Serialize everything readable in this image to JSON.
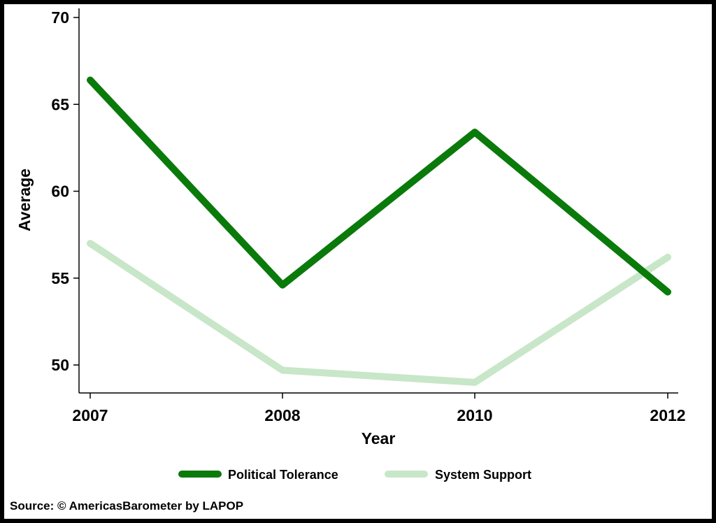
{
  "chart_data": {
    "type": "line",
    "title": "",
    "xlabel": "Year",
    "ylabel": "Average",
    "categories": [
      "2007",
      "2008",
      "2010",
      "2012"
    ],
    "x": [
      2007,
      2008,
      2010,
      2012
    ],
    "ylim": [
      48,
      70
    ],
    "yticks": [
      "50",
      "55",
      "60",
      "65",
      "70"
    ],
    "ytick_values": [
      50,
      55,
      60,
      65,
      70
    ],
    "grid": false,
    "legend": "bottom",
    "series": [
      {
        "name": "Political Tolerance",
        "color": "#0a7a0a",
        "values": [
          66.4,
          54.6,
          63.4,
          54.2
        ]
      },
      {
        "name": "System Support",
        "color": "#c8e6c8",
        "values": [
          57.0,
          49.7,
          49.0,
          56.2
        ]
      }
    ]
  },
  "footer": {
    "source": "Source: © AmericasBarometer by LAPOP"
  }
}
